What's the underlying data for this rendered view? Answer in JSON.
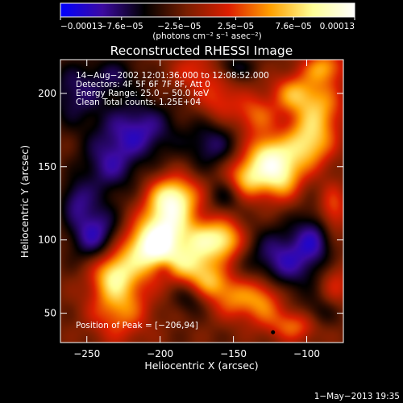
{
  "chart_data": {
    "type": "heatmap",
    "title": "Reconstructed RHESSI Image",
    "xlabel": "Heliocentric X (arcsec)",
    "ylabel": "Heliocentric Y (arcsec)",
    "xlim": [
      -268,
      -75
    ],
    "ylim": [
      30,
      223
    ],
    "x_ticks": [
      -250,
      -200,
      -150,
      -100
    ],
    "x_tick_labels": [
      "−250",
      "−200",
      "−150",
      "−100"
    ],
    "y_ticks": [
      50,
      100,
      150,
      200
    ],
    "y_tick_labels": [
      "50",
      "100",
      "150",
      "200"
    ],
    "colorbar": {
      "min": -0.00013,
      "max": 0.00013,
      "ticks": [
        -0.00013,
        -7.6e-05,
        -2.5e-05,
        2.5e-05,
        7.6e-05,
        0.00013
      ],
      "tick_labels": [
        "−0.00013",
        "−7.6e−05",
        "−2.5e−05",
        "2.5e−05",
        "7.6e−05",
        "0.00013"
      ],
      "units_label": "(photons cm⁻² s⁻¹ asec⁻²)",
      "colors": [
        "#0000ff",
        "#3c0aa0",
        "#000000",
        "#781e00",
        "#dc1e00",
        "#ffa000",
        "#ffff96",
        "#ffffff"
      ]
    },
    "annotations": [
      "14−Aug−2002 12:01:36.000 to 12:08:52.000",
      "Detectors: 4F 5F 6F 7F 8F, Att 0",
      "Energy Range: 25.0 − 50.0 keV",
      "Clean     Total counts: 1.25E+04"
    ],
    "peak_label": "Position of Peak = [−206,94]",
    "peak": {
      "x": -206,
      "y": 94
    },
    "blobs": [
      {
        "x": -228,
        "y": 58,
        "v": 0.62,
        "sx": 14,
        "sy": 18
      },
      {
        "x": -232,
        "y": 78,
        "v": 0.55,
        "sx": 10,
        "sy": 10
      },
      {
        "x": -206,
        "y": 94,
        "v": 1.0,
        "sx": 14,
        "sy": 12
      },
      {
        "x": -195,
        "y": 112,
        "v": 0.78,
        "sx": 12,
        "sy": 14
      },
      {
        "x": -190,
        "y": 130,
        "v": 0.72,
        "sx": 12,
        "sy": 10
      },
      {
        "x": -178,
        "y": 82,
        "v": 0.62,
        "sx": 11,
        "sy": 9
      },
      {
        "x": -170,
        "y": 100,
        "v": 0.62,
        "sx": 10,
        "sy": 10
      },
      {
        "x": -155,
        "y": 100,
        "v": 0.65,
        "sx": 9,
        "sy": 10
      },
      {
        "x": -165,
        "y": 70,
        "v": 0.5,
        "sx": 9,
        "sy": 8
      },
      {
        "x": -150,
        "y": 60,
        "v": 0.45,
        "sx": 10,
        "sy": 10
      },
      {
        "x": -130,
        "y": 60,
        "v": 0.6,
        "sx": 10,
        "sy": 12
      },
      {
        "x": -140,
        "y": 143,
        "v": 0.75,
        "sx": 10,
        "sy": 10
      },
      {
        "x": -118,
        "y": 145,
        "v": 0.85,
        "sx": 10,
        "sy": 12
      },
      {
        "x": -128,
        "y": 160,
        "v": 0.55,
        "sx": 9,
        "sy": 9
      },
      {
        "x": -100,
        "y": 165,
        "v": 0.72,
        "sx": 12,
        "sy": 12
      },
      {
        "x": -110,
        "y": 200,
        "v": 0.5,
        "sx": 10,
        "sy": 9
      },
      {
        "x": -92,
        "y": 190,
        "v": 0.6,
        "sx": 12,
        "sy": 14
      },
      {
        "x": -135,
        "y": 185,
        "v": 0.45,
        "sx": 10,
        "sy": 10
      },
      {
        "x": -160,
        "y": 195,
        "v": 0.35,
        "sx": 10,
        "sy": 10
      },
      {
        "x": -175,
        "y": 215,
        "v": 0.35,
        "sx": 12,
        "sy": 10
      },
      {
        "x": -88,
        "y": 218,
        "v": 0.55,
        "sx": 10,
        "sy": 8
      },
      {
        "x": -82,
        "y": 120,
        "v": 0.45,
        "sx": 7,
        "sy": 12
      },
      {
        "x": -108,
        "y": 42,
        "v": 0.5,
        "sx": 12,
        "sy": 8
      },
      {
        "x": -80,
        "y": 70,
        "v": 0.3,
        "sx": 8,
        "sy": 12
      },
      {
        "x": -215,
        "y": 175,
        "v": -0.55,
        "sx": 18,
        "sy": 14
      },
      {
        "x": -235,
        "y": 150,
        "v": -0.45,
        "sx": 14,
        "sy": 14
      },
      {
        "x": -245,
        "y": 105,
        "v": -0.6,
        "sx": 12,
        "sy": 14
      },
      {
        "x": -258,
        "y": 200,
        "v": -0.4,
        "sx": 14,
        "sy": 16
      },
      {
        "x": -230,
        "y": 212,
        "v": -0.3,
        "sx": 12,
        "sy": 10
      },
      {
        "x": -165,
        "y": 165,
        "v": -0.4,
        "sx": 12,
        "sy": 12
      },
      {
        "x": -118,
        "y": 85,
        "v": -0.55,
        "sx": 16,
        "sy": 16
      },
      {
        "x": -95,
        "y": 100,
        "v": -0.45,
        "sx": 10,
        "sy": 14
      },
      {
        "x": -155,
        "y": 130,
        "v": -0.3,
        "sx": 8,
        "sy": 8
      },
      {
        "x": -180,
        "y": 60,
        "v": -0.25,
        "sx": 8,
        "sy": 8
      },
      {
        "x": -150,
        "y": 218,
        "v": -0.3,
        "sx": 10,
        "sy": 6
      },
      {
        "x": -258,
        "y": 128,
        "v": -0.35,
        "sx": 8,
        "sy": 10
      },
      {
        "x": -92,
        "y": 50,
        "v": -0.3,
        "sx": 10,
        "sy": 8
      },
      {
        "x": -197,
        "y": 80,
        "v": -0.2,
        "sx": 5,
        "sy": 5
      }
    ],
    "grid": false
  },
  "footer": {
    "date": "1−May−2013 19:35"
  }
}
